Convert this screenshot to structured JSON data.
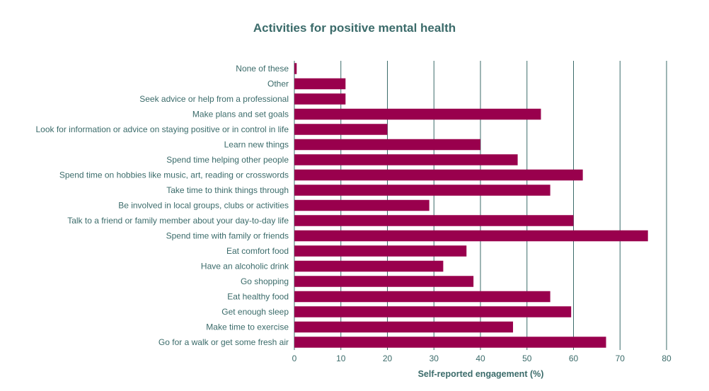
{
  "chart_data": {
    "type": "bar",
    "orientation": "horizontal",
    "title": "Activities for positive mental health",
    "xlabel": "Self-reported engagement (%)",
    "ylabel": "",
    "xlim": [
      0,
      80
    ],
    "xticks": [
      0,
      10,
      20,
      30,
      40,
      50,
      60,
      70,
      80
    ],
    "grid": true,
    "bar_color": "#99004d",
    "grid_color": "#3b6b6a",
    "text_color": "#3b6b6a",
    "categories": [
      "None of these",
      "Other",
      "Seek advice or help from a professional",
      "Make plans and set goals",
      "Look for information or advice on staying positive or in control in life",
      "Learn new things",
      "Spend time helping other people",
      "Spend time on hobbies like music, art, reading or crosswords",
      "Take time to think things through",
      "Be involved in local groups, clubs or activities",
      "Talk to a friend or family member about your day-to-day life",
      "Spend time with family or friends",
      "Eat comfort food",
      "Have an alcoholic drink",
      "Go shopping",
      "Eat healthy food",
      "Get enough sleep",
      "Make time to exercise",
      "Go for a walk or get some fresh air"
    ],
    "values": [
      0.5,
      11,
      11,
      53,
      20,
      40,
      48,
      62,
      55,
      29,
      60,
      76,
      37,
      32,
      38.5,
      55,
      59.5,
      47,
      67
    ]
  }
}
